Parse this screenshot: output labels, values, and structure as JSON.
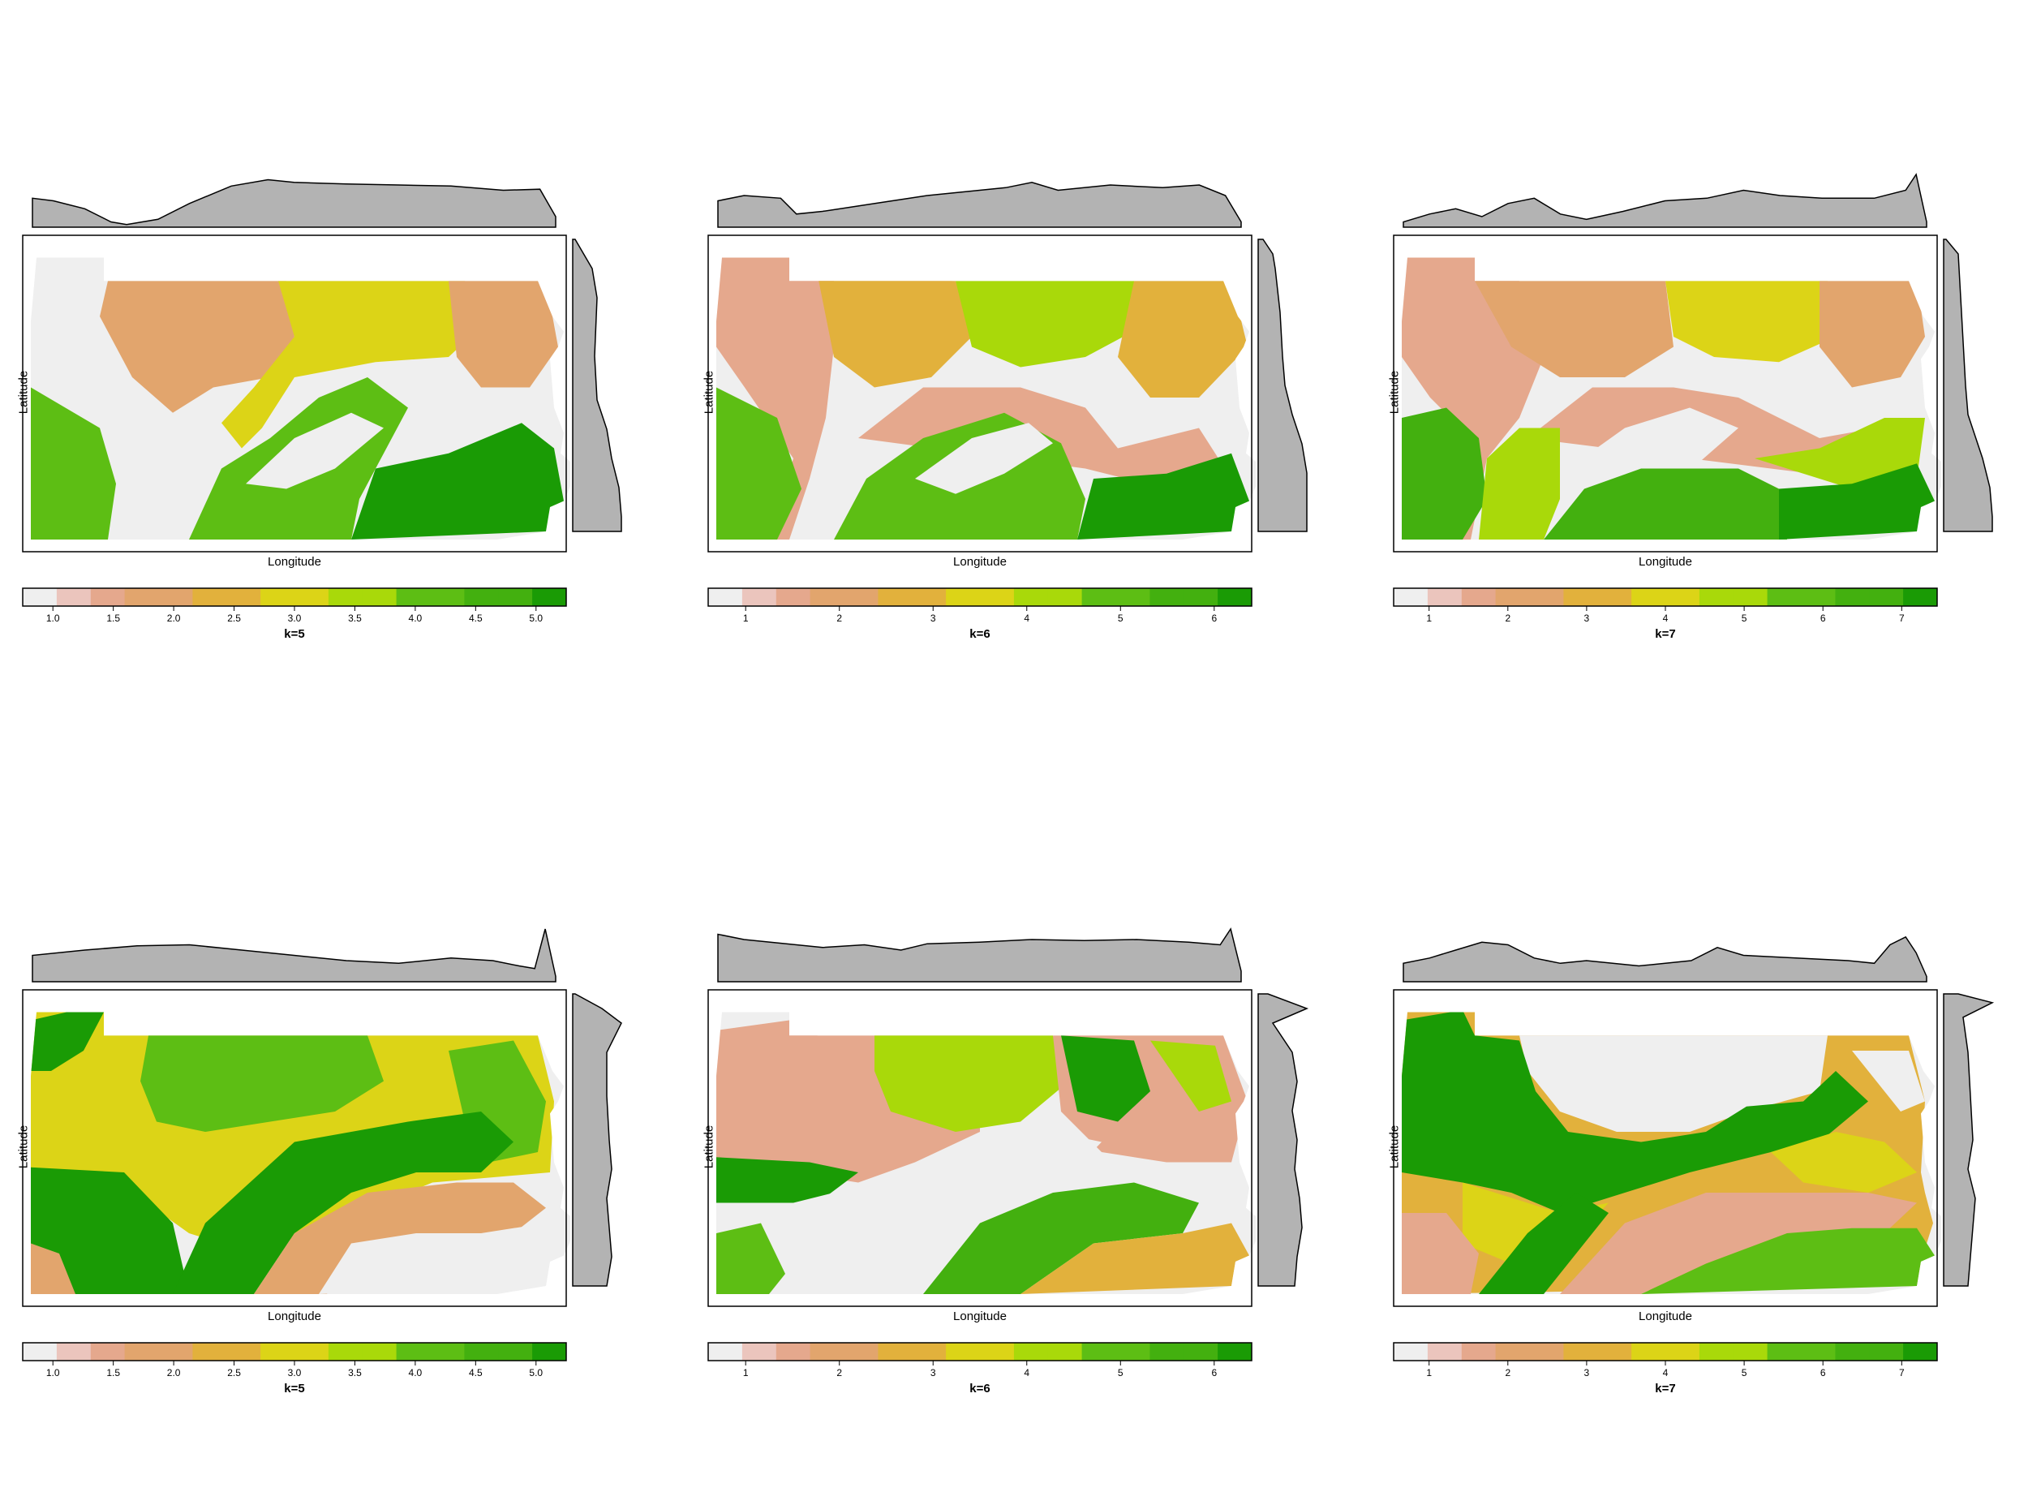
{
  "axis_labels": {
    "x": "Longitude",
    "y": "Latitude"
  },
  "colors": {
    "palette": [
      "#efefef",
      "#ebc5bd",
      "#e5a88d",
      "#e2a56d",
      "#e2b13c",
      "#dcd417",
      "#a9d90a",
      "#5dbe14",
      "#43b00f",
      "#1a9b05"
    ],
    "marginal_fill": "#b3b3b3",
    "frame": "#000000"
  },
  "chart_data": [
    {
      "type": "heatmap",
      "row": "top",
      "title": "k=5",
      "xlabel": "Longitude",
      "ylabel": "Latitude",
      "legend": {
        "placement": "below",
        "ticks": [
          "1.0",
          "1.5",
          "2.0",
          "2.5",
          "3.0",
          "3.5",
          "4.0",
          "4.5",
          "5.0"
        ],
        "range": [
          0.75,
          5.25
        ]
      },
      "regions": [
        {
          "value": 1,
          "area": "northwest and central band"
        },
        {
          "value": 2,
          "area": "north-central and northeast"
        },
        {
          "value": 3,
          "area": "north-central"
        },
        {
          "value": 4,
          "area": "southwest and south-central"
        },
        {
          "value": 5,
          "area": "southeast"
        }
      ]
    },
    {
      "type": "heatmap",
      "row": "top",
      "title": "k=6",
      "xlabel": "Longitude",
      "ylabel": "Latitude",
      "legend": {
        "placement": "below",
        "ticks": [
          "1",
          "2",
          "3",
          "4",
          "5",
          "6"
        ],
        "range": [
          0.6,
          6.4
        ]
      }
    },
    {
      "type": "heatmap",
      "row": "top",
      "title": "k=7",
      "xlabel": "Longitude",
      "ylabel": "Latitude",
      "legend": {
        "placement": "below",
        "ticks": [
          "1",
          "2",
          "3",
          "4",
          "5",
          "6",
          "7"
        ],
        "range": [
          0.55,
          7.45
        ]
      }
    },
    {
      "type": "heatmap",
      "row": "bottom",
      "title": "k=5",
      "xlabel": "Longitude",
      "ylabel": "Latitude",
      "legend": {
        "placement": "below",
        "ticks": [
          "1.0",
          "1.5",
          "2.0",
          "2.5",
          "3.0",
          "3.5",
          "4.0",
          "4.5",
          "5.0"
        ],
        "range": [
          0.75,
          5.25
        ]
      }
    },
    {
      "type": "heatmap",
      "row": "bottom",
      "title": "k=6",
      "xlabel": "Longitude",
      "ylabel": "Latitude",
      "legend": {
        "placement": "below",
        "ticks": [
          "1",
          "2",
          "3",
          "4",
          "5",
          "6"
        ],
        "range": [
          0.6,
          6.4
        ]
      }
    },
    {
      "type": "heatmap",
      "row": "bottom",
      "title": "k=7",
      "xlabel": "Longitude",
      "ylabel": "Latitude",
      "legend": {
        "placement": "below",
        "ticks": [
          "1",
          "2",
          "3",
          "4",
          "5",
          "6",
          "7"
        ],
        "range": [
          0.55,
          7.45
        ]
      }
    }
  ]
}
